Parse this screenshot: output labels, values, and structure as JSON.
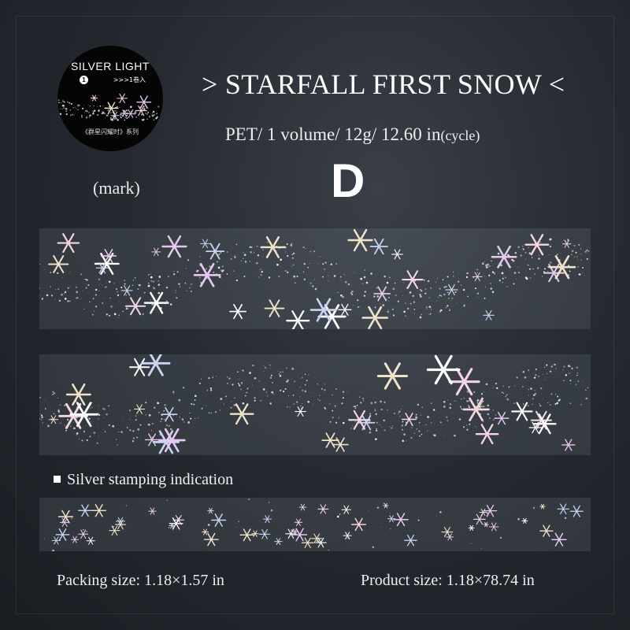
{
  "badge": {
    "title": "SILVER LIGHT",
    "number": "1",
    "roll_text": ">>>1卷入",
    "series": "《群星闪耀时》系列",
    "caption": "(mark)"
  },
  "product": {
    "title": "> STARFALL FIRST SNOW <",
    "spec": "PET/ 1 volume/ 12g/ 12.60 in",
    "spec_suffix": "(cycle)",
    "variant": "D"
  },
  "indication": "Silver stamping indication",
  "packing_size": "Packing size: 1.18×1.57 in",
  "product_size": "Product size: 1.18×78.74 in",
  "colors": {
    "background": "#262a31",
    "flake_colors": [
      "#ffffff",
      "#e6c8f0",
      "#f4d6e4",
      "#c8d4f4",
      "#efe3c8"
    ]
  }
}
